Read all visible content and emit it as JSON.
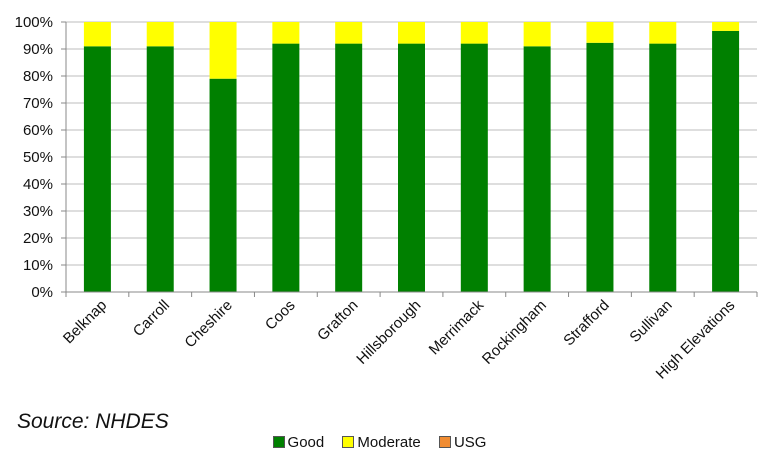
{
  "source_note": "Source:  NHDES",
  "colors": {
    "Good": "#008000",
    "Moderate": "#ffff00",
    "USG": "#f08c32"
  },
  "chart_data": {
    "type": "bar",
    "stacked": true,
    "title": "",
    "xlabel": "",
    "ylabel": "",
    "ylim": [
      0,
      100
    ],
    "y_tick_format": "percent",
    "y_ticks": [
      "0%",
      "10%",
      "20%",
      "30%",
      "40%",
      "50%",
      "60%",
      "70%",
      "80%",
      "90%",
      "100%"
    ],
    "grid": "horizontal",
    "legend_position": "bottom",
    "categories": [
      "Belknap",
      "Carroll",
      "Cheshire",
      "Coos",
      "Grafton",
      "Hillsborough",
      "Merrimack",
      "Rockingham",
      "Strafford",
      "Sullivan",
      "High Elevations"
    ],
    "series": [
      {
        "name": "Good",
        "color": "#008000",
        "values": [
          91,
          91,
          79,
          92,
          92,
          92,
          92,
          91,
          92.3,
          92,
          96.7
        ]
      },
      {
        "name": "Moderate",
        "color": "#ffff00",
        "values": [
          9,
          9,
          21,
          8,
          8,
          8,
          8,
          9,
          7.7,
          8,
          3.3
        ]
      },
      {
        "name": "USG",
        "color": "#f08c32",
        "values": [
          0,
          0,
          0,
          0,
          0,
          0,
          0,
          0,
          0,
          0,
          0
        ]
      }
    ]
  }
}
